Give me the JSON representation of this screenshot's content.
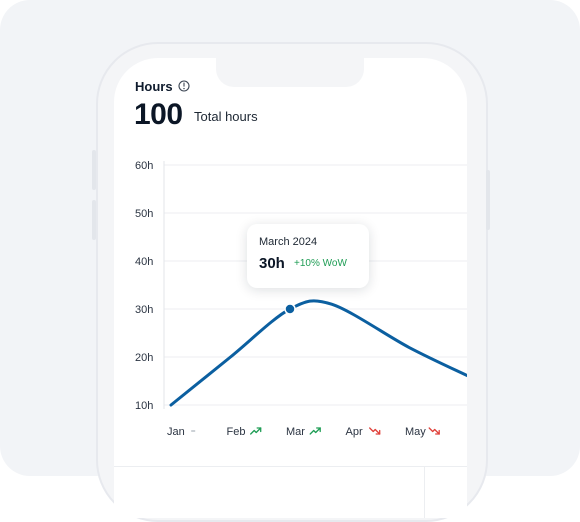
{
  "header": {
    "title": "Hours",
    "info_icon": "info-icon",
    "total_value": "100",
    "total_label": "Total hours"
  },
  "tooltip": {
    "title": "March 2024",
    "value": "30h",
    "change": "+10% WoW"
  },
  "colors": {
    "line": "#0b5fa0",
    "trend_up": "#1f9d55",
    "trend_down": "#e0403a"
  },
  "chart_data": {
    "type": "line",
    "title": "",
    "y_tick_labels": [
      "10h",
      "20h",
      "30h",
      "40h",
      "50h",
      "60h"
    ],
    "ylim": [
      10,
      60
    ],
    "grid": true,
    "x_categories": [
      {
        "label": "Jan",
        "trend": "flat",
        "trend_icon": "dash-icon"
      },
      {
        "label": "Feb",
        "trend": "up",
        "trend_icon": "trend-up-icon"
      },
      {
        "label": "Mar",
        "trend": "up",
        "trend_icon": "trend-up-icon"
      },
      {
        "label": "Apr",
        "trend": "down",
        "trend_icon": "trend-down-icon"
      },
      {
        "label": "May",
        "trend": "down",
        "trend_icon": "trend-down-icon"
      }
    ],
    "series": [
      {
        "x": [
          0,
          1,
          2,
          2.7,
          4,
          5
        ],
        "y": [
          10,
          20,
          30,
          31,
          22,
          16
        ]
      }
    ],
    "highlight": {
      "category": "Mar",
      "value": 30
    }
  }
}
